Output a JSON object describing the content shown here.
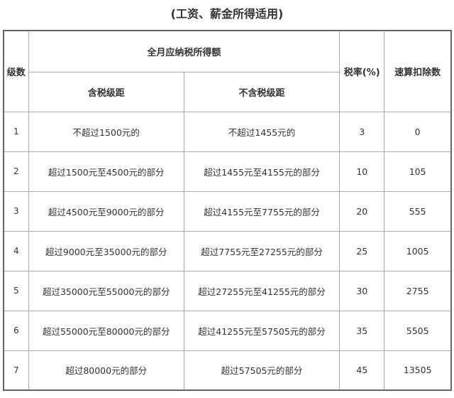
{
  "title": "(工资、薪金所得适用)",
  "headers": {
    "level": "级数",
    "monthly_income": "全月应纳税所得额",
    "tax_included": "含税级距",
    "tax_excluded": "不含税级距",
    "rate": "税率(%)",
    "quick_deduction": "速算扣除数"
  },
  "rows": [
    {
      "level": "1",
      "included": "不超过1500元的",
      "excluded": "不超过1455元的",
      "rate": "3",
      "deduction": "0"
    },
    {
      "level": "2",
      "included": "超过1500元至4500元的部分",
      "excluded": "超过1455元至4155元的部分",
      "rate": "10",
      "deduction": "105"
    },
    {
      "level": "3",
      "included": "超过4500元至9000元的部分",
      "excluded": "超过4155元至7755元的部分",
      "rate": "20",
      "deduction": "555"
    },
    {
      "level": "4",
      "included": "超过9000元至35000元的部分",
      "excluded": "超过7755元至27255元的部分",
      "rate": "25",
      "deduction": "1005"
    },
    {
      "level": "5",
      "included": "超过35000元至55000元的部分",
      "excluded": "超过27255元至41255元的部分",
      "rate": "30",
      "deduction": "2755"
    },
    {
      "level": "6",
      "included": "超过55000元至80000元的部分",
      "excluded": "超过41255元至57505元的部分",
      "rate": "35",
      "deduction": "5505"
    },
    {
      "level": "7",
      "included": "超过80000元的部分",
      "excluded": "超过57505元的部分",
      "rate": "45",
      "deduction": "13505"
    }
  ]
}
